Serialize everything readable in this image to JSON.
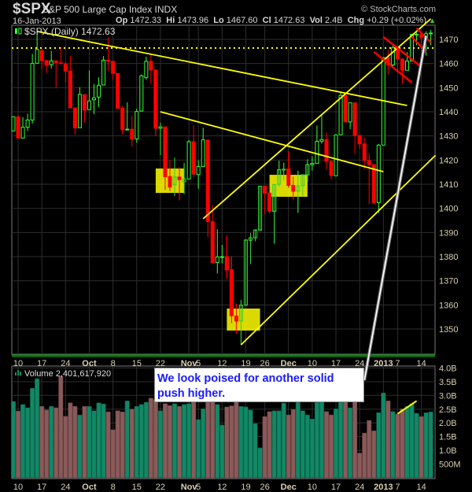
{
  "header": {
    "symbol": "$SPX",
    "name": "S&P 500 Large Cap Index  INDX",
    "brand": "© StockCharts.com",
    "date": "16-Jan-2013",
    "op_label": "Op",
    "op": "1472.33",
    "hi_label": "Hi",
    "hi": "1473.96",
    "lo_label": "Lo",
    "lo": "1467.60",
    "cl_label": "Cl",
    "cl": "1472.63",
    "vol_label": "Vol",
    "vol": "2.4B",
    "chg_label": "Chg",
    "chg": "+0.29 (+0.02%)",
    "chg_icon": "up-triangle-icon"
  },
  "callout": {
    "line1": "We look poised for another solid",
    "line2": "push higher."
  },
  "colors": {
    "up": "#33ff33",
    "down": "#ff0000",
    "vol_up": "#118866",
    "vol_down": "#8a5a5a",
    "trend": "#ffff00",
    "separator": "#008000",
    "callout_text": "#1a1aff"
  },
  "chart_data": [
    {
      "type": "candlestick",
      "legend": "$SPX (Daily) 1472.63",
      "ylim": [
        1342,
        1476
      ],
      "yticks": [
        1350,
        1360,
        1370,
        1380,
        1390,
        1400,
        1410,
        1420,
        1430,
        1440,
        1450,
        1460,
        1470
      ],
      "grid": true,
      "dates": [
        "2012-09-07",
        "2012-09-10",
        "2012-09-11",
        "2012-09-12",
        "2012-09-13",
        "2012-09-14",
        "2012-09-17",
        "2012-09-18",
        "2012-09-19",
        "2012-09-20",
        "2012-09-21",
        "2012-09-24",
        "2012-09-25",
        "2012-09-26",
        "2012-09-27",
        "2012-09-28",
        "2012-10-01",
        "2012-10-02",
        "2012-10-03",
        "2012-10-04",
        "2012-10-05",
        "2012-10-08",
        "2012-10-09",
        "2012-10-10",
        "2012-10-11",
        "2012-10-12",
        "2012-10-15",
        "2012-10-16",
        "2012-10-17",
        "2012-10-18",
        "2012-10-19",
        "2012-10-22",
        "2012-10-23",
        "2012-10-24",
        "2012-10-25",
        "2012-10-26",
        "2012-10-31",
        "2012-11-01",
        "2012-11-02",
        "2012-11-05",
        "2012-11-06",
        "2012-11-07",
        "2012-11-08",
        "2012-11-09",
        "2012-11-12",
        "2012-11-13",
        "2012-11-14",
        "2012-11-15",
        "2012-11-16",
        "2012-11-19",
        "2012-11-20",
        "2012-11-21",
        "2012-11-23",
        "2012-11-26",
        "2012-11-27",
        "2012-11-28",
        "2012-11-29",
        "2012-11-30",
        "2012-12-03",
        "2012-12-04",
        "2012-12-05",
        "2012-12-06",
        "2012-12-07",
        "2012-12-10",
        "2012-12-11",
        "2012-12-12",
        "2012-12-13",
        "2012-12-14",
        "2012-12-17",
        "2012-12-18",
        "2012-12-19",
        "2012-12-20",
        "2012-12-21",
        "2012-12-24",
        "2012-12-26",
        "2012-12-27",
        "2012-12-28",
        "2012-12-31",
        "2013-01-02",
        "2013-01-03",
        "2013-01-04",
        "2013-01-07",
        "2013-01-08",
        "2013-01-09",
        "2013-01-10",
        "2013-01-11",
        "2013-01-14",
        "2013-01-15",
        "2013-01-16"
      ],
      "ohlc": [
        [
          1432.1,
          1437.9,
          1431.9,
          1437.9
        ],
        [
          1437.9,
          1438.7,
          1428.9,
          1429.1
        ],
        [
          1429.1,
          1437.8,
          1429.1,
          1433.6
        ],
        [
          1433.6,
          1439.2,
          1432.0,
          1436.6
        ],
        [
          1436.6,
          1464.0,
          1435.1,
          1460.0
        ],
        [
          1460.1,
          1474.5,
          1460.1,
          1465.8
        ],
        [
          1465.4,
          1465.6,
          1457.6,
          1461.2
        ],
        [
          1461.2,
          1461.5,
          1456.1,
          1459.3
        ],
        [
          1459.5,
          1465.2,
          1457.9,
          1461.1
        ],
        [
          1461.1,
          1461.2,
          1449.9,
          1460.3
        ],
        [
          1460.3,
          1467.1,
          1459.5,
          1460.2
        ],
        [
          1459.8,
          1460.7,
          1452.1,
          1456.9
        ],
        [
          1456.9,
          1463.2,
          1441.6,
          1441.6
        ],
        [
          1441.6,
          1441.6,
          1430.5,
          1433.3
        ],
        [
          1433.4,
          1450.2,
          1433.4,
          1447.2
        ],
        [
          1447.1,
          1447.1,
          1435.6,
          1440.7
        ],
        [
          1440.9,
          1457.1,
          1440.9,
          1444.5
        ],
        [
          1445.0,
          1451.5,
          1439.0,
          1445.8
        ],
        [
          1446.1,
          1454.3,
          1441.9,
          1451.0
        ],
        [
          1451.1,
          1463.1,
          1451.1,
          1461.4
        ],
        [
          1461.4,
          1470.9,
          1456.9,
          1460.9
        ],
        [
          1460.9,
          1460.9,
          1453.1,
          1455.9
        ],
        [
          1455.9,
          1455.9,
          1441.2,
          1441.5
        ],
        [
          1441.5,
          1442.5,
          1430.6,
          1432.6
        ],
        [
          1432.8,
          1443.9,
          1432.8,
          1432.8
        ],
        [
          1432.8,
          1438.4,
          1425.5,
          1428.6
        ],
        [
          1428.8,
          1441.3,
          1427.2,
          1440.1
        ],
        [
          1440.3,
          1455.5,
          1440.3,
          1454.9
        ],
        [
          1454.2,
          1462.8,
          1453.3,
          1460.9
        ],
        [
          1460.9,
          1464.0,
          1451.6,
          1457.3
        ],
        [
          1457.3,
          1457.3,
          1429.9,
          1433.2
        ],
        [
          1433.2,
          1435.5,
          1422.1,
          1433.8
        ],
        [
          1433.7,
          1433.7,
          1407.6,
          1413.1
        ],
        [
          1413.2,
          1420.0,
          1407.1,
          1408.8
        ],
        [
          1409.7,
          1421.1,
          1405.1,
          1413.0
        ],
        [
          1413.0,
          1417.1,
          1403.3,
          1411.9
        ],
        [
          1411.0,
          1418.8,
          1405.9,
          1412.2
        ],
        [
          1412.2,
          1428.4,
          1412.2,
          1427.6
        ],
        [
          1427.6,
          1434.3,
          1412.9,
          1414.2
        ],
        [
          1414.0,
          1419.9,
          1408.1,
          1417.3
        ],
        [
          1417.3,
          1433.4,
          1417.3,
          1428.4
        ],
        [
          1428.3,
          1428.3,
          1388.1,
          1394.5
        ],
        [
          1394.5,
          1401.2,
          1377.5,
          1377.5
        ],
        [
          1377.6,
          1391.4,
          1373.0,
          1379.9
        ],
        [
          1379.9,
          1384.9,
          1377.2,
          1380.0
        ],
        [
          1380.0,
          1388.8,
          1370.9,
          1374.5
        ],
        [
          1374.6,
          1380.1,
          1352.5,
          1355.5
        ],
        [
          1355.4,
          1360.6,
          1348.1,
          1353.3
        ],
        [
          1353.4,
          1362.0,
          1343.4,
          1359.9
        ],
        [
          1359.9,
          1386.9,
          1359.9,
          1386.9
        ],
        [
          1386.8,
          1389.8,
          1377.0,
          1387.8
        ],
        [
          1387.8,
          1391.3,
          1386.4,
          1391.0
        ],
        [
          1391.0,
          1409.2,
          1391.0,
          1409.2
        ],
        [
          1409.2,
          1409.2,
          1397.7,
          1406.3
        ],
        [
          1406.3,
          1409.0,
          1398.0,
          1398.9
        ],
        [
          1398.8,
          1410.0,
          1385.4,
          1409.9
        ],
        [
          1410.0,
          1419.7,
          1409.0,
          1416.0
        ],
        [
          1416.0,
          1418.9,
          1411.6,
          1416.2
        ],
        [
          1416.3,
          1423.7,
          1408.5,
          1409.5
        ],
        [
          1409.5,
          1413.1,
          1403.7,
          1407.1
        ],
        [
          1407.1,
          1415.6,
          1398.2,
          1409.3
        ],
        [
          1409.4,
          1413.9,
          1405.0,
          1413.9
        ],
        [
          1413.9,
          1420.3,
          1410.9,
          1418.1
        ],
        [
          1418.1,
          1421.6,
          1415.6,
          1418.6
        ],
        [
          1418.6,
          1434.3,
          1418.6,
          1427.8
        ],
        [
          1427.8,
          1438.6,
          1426.8,
          1428.5
        ],
        [
          1428.5,
          1431.4,
          1416.0,
          1419.5
        ],
        [
          1419.5,
          1419.5,
          1411.9,
          1413.6
        ],
        [
          1413.5,
          1430.7,
          1413.5,
          1430.4
        ],
        [
          1430.5,
          1448.0,
          1430.5,
          1446.8
        ],
        [
          1446.8,
          1447.8,
          1435.8,
          1435.8
        ],
        [
          1435.8,
          1443.7,
          1432.8,
          1443.7
        ],
        [
          1443.7,
          1443.7,
          1422.6,
          1430.2
        ],
        [
          1430.2,
          1430.2,
          1424.7,
          1426.7
        ],
        [
          1426.7,
          1429.4,
          1416.4,
          1419.8
        ],
        [
          1419.8,
          1422.8,
          1401.8,
          1418.1
        ],
        [
          1418.1,
          1418.1,
          1401.6,
          1402.4
        ],
        [
          1402.4,
          1426.7,
          1398.1,
          1426.2
        ],
        [
          1426.2,
          1462.4,
          1426.2,
          1462.4
        ],
        [
          1462.4,
          1465.5,
          1455.5,
          1459.4
        ],
        [
          1459.4,
          1467.9,
          1458.6,
          1466.5
        ],
        [
          1466.5,
          1466.5,
          1456.6,
          1461.9
        ],
        [
          1461.9,
          1461.9,
          1451.6,
          1457.2
        ],
        [
          1457.2,
          1464.7,
          1457.2,
          1461.0
        ],
        [
          1461.0,
          1472.3,
          1461.0,
          1472.1
        ],
        [
          1472.1,
          1472.8,
          1467.6,
          1472.1
        ],
        [
          1472.1,
          1472.1,
          1465.7,
          1470.7
        ],
        [
          1470.7,
          1473.3,
          1463.3,
          1472.3
        ],
        [
          1472.33,
          1473.96,
          1467.6,
          1472.63
        ]
      ],
      "xticks": [
        {
          "label": "10",
          "date": "2012-09-10"
        },
        {
          "label": "17",
          "date": "2012-09-17"
        },
        {
          "label": "24",
          "date": "2012-09-24"
        },
        {
          "label": "Oct",
          "date": "2012-10-01",
          "bold": true
        },
        {
          "label": "8",
          "date": "2012-10-08"
        },
        {
          "label": "15",
          "date": "2012-10-15"
        },
        {
          "label": "22",
          "date": "2012-10-22"
        },
        {
          "label": "Nov",
          "date": "2012-11-01",
          "bold": true
        },
        {
          "label": "5",
          "date": "2012-11-05"
        },
        {
          "label": "12",
          "date": "2012-11-12"
        },
        {
          "label": "19",
          "date": "2012-11-19"
        },
        {
          "label": "26",
          "date": "2012-11-26"
        },
        {
          "label": "Dec",
          "date": "2012-12-03",
          "bold": true
        },
        {
          "label": "10",
          "date": "2012-12-10"
        },
        {
          "label": "17",
          "date": "2012-12-17"
        },
        {
          "label": "24",
          "date": "2012-12-24"
        },
        {
          "label": "2013",
          "date": "2013-01-02",
          "bold": true
        },
        {
          "label": "7",
          "date": "2013-01-07"
        },
        {
          "label": "14",
          "date": "2013-01-14"
        }
      ],
      "annotations": {
        "trendlines": [
          {
            "color": "yellow",
            "from": [
              "2012-09-14",
              1473.3
            ],
            "to": [
              "2013-01-09",
              1442.6
            ]
          },
          {
            "color": "yellow",
            "from": [
              "2012-10-22",
              1440.0
            ],
            "to": [
              "2013-01-02",
              1415.2
            ]
          },
          {
            "color": "yellow",
            "from": [
              "2012-11-06",
              1395.7
            ],
            "to": [
              "2013-01-16",
              1478.5
            ]
          },
          {
            "color": "yellow",
            "from": [
              "2012-11-16",
              1343.5
            ],
            "to": [
              "2013-01-16",
              1422.0
            ],
            "extend": 1
          },
          {
            "color": "red",
            "from": [
              "2012-12-28",
              1464.8
            ],
            "to": [
              "2013-01-10",
              1452.1
            ]
          },
          {
            "color": "red",
            "from": [
              "2013-01-02",
              1471.0
            ],
            "to": [
              "2013-01-14",
              1458.6
            ]
          },
          {
            "color": "red",
            "from": [
              "2013-01-10",
              1471.0
            ],
            "to": [
              "2013-01-15",
              1464.8
            ]
          },
          {
            "color": "red",
            "from": [
              "2013-01-11",
              1474.6
            ],
            "to": [
              "2013-01-16",
              1468.7
            ]
          }
        ],
        "horizontal_dotted": {
          "color": "yellow",
          "price": 1466.4
        },
        "boxes": [
          {
            "from": [
              "2012-10-19",
              1416.5
            ],
            "to": [
              "2012-10-31",
              1406.4
            ]
          },
          {
            "from": [
              "2012-11-27",
              1413.9
            ],
            "to": [
              "2012-12-07",
              1404.8
            ]
          },
          {
            "from": [
              "2012-11-13",
              1358.5
            ],
            "to": [
              "2012-11-23",
              1349.4
            ]
          }
        ],
        "pointer": {
          "from": [
            "2012-12-26",
            1330.4
          ],
          "to": [
            "2013-01-15",
            1471.5
          ]
        }
      }
    },
    {
      "type": "bar",
      "legend": "Volume 2,401,617,920",
      "unit": "billions of shares",
      "ylim": [
        0,
        4.0
      ],
      "yticks": [
        {
          "v": 0.5,
          "label": "500M"
        },
        {
          "v": 1.0,
          "label": "1.0B"
        },
        {
          "v": 1.5,
          "label": "1.5B"
        },
        {
          "v": 2.0,
          "label": "2.0B"
        },
        {
          "v": 2.5,
          "label": "2.5B"
        },
        {
          "v": 3.0,
          "label": "3.0B"
        },
        {
          "v": 3.5,
          "label": "3.5B"
        },
        {
          "v": 4.0,
          "label": "4.0B"
        }
      ],
      "values": [
        2.78,
        2.43,
        2.67,
        2.55,
        3.26,
        3.61,
        2.6,
        2.47,
        2.6,
        2.55,
        3.69,
        2.24,
        2.73,
        2.6,
        2.29,
        2.6,
        2.6,
        2.44,
        2.73,
        2.69,
        2.4,
        1.75,
        2.44,
        2.4,
        2.8,
        2.5,
        2.6,
        2.67,
        2.75,
        2.9,
        2.85,
        2.44,
        2.7,
        2.63,
        2.7,
        2.6,
        2.67,
        2.7,
        2.8,
        2.12,
        2.51,
        2.8,
        2.8,
        2.67,
        1.92,
        2.58,
        2.62,
        2.9,
        2.6,
        2.58,
        2.47,
        1.97,
        1.09,
        2.23,
        2.41,
        2.44,
        2.44,
        2.72,
        2.29,
        2.49,
        2.75,
        2.44,
        2.29,
        2.14,
        2.75,
        2.8,
        2.41,
        2.29,
        2.51,
        2.75,
        2.8,
        2.55,
        2.9,
        0.9,
        1.63,
        2.09,
        1.71,
        2.37,
        3.09,
        2.8,
        2.41,
        2.32,
        2.51,
        2.6,
        2.7,
        2.35,
        2.23,
        2.37,
        2.4
      ],
      "annotations": {
        "trendlines": [
          {
            "color": "yellow",
            "from": [
              "2013-01-07",
              2.33
            ],
            "to": [
              "2013-01-11",
              2.8
            ]
          }
        ]
      }
    }
  ]
}
